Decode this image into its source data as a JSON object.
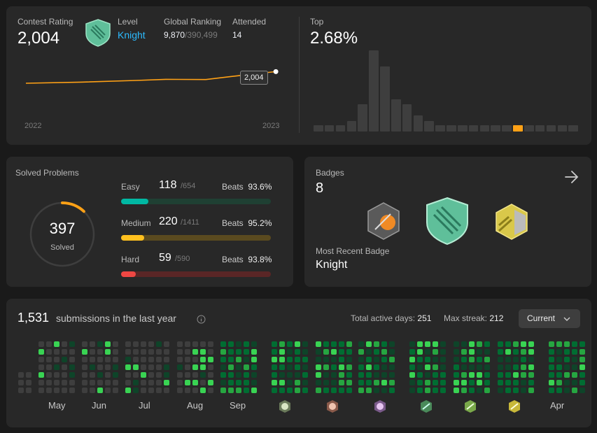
{
  "contest": {
    "rating_label": "Contest Rating",
    "rating_value": "2,004",
    "level_label": "Level",
    "level_value": "Knight",
    "ranking_label": "Global Ranking",
    "ranking_value": "9,870",
    "ranking_total": "/390,499",
    "attended_label": "Attended",
    "attended_value": "14",
    "tooltip_value": "2,004",
    "x_start": "2022",
    "x_end": "2023",
    "top_label": "Top",
    "top_value": "2.68%",
    "accent_color": "#ffa116"
  },
  "chart_data": [
    {
      "type": "line",
      "x": [
        0.0,
        0.22,
        0.44,
        0.56,
        0.72,
        0.82,
        0.92,
        1.0
      ],
      "y": [
        1900,
        1910,
        1925,
        1935,
        1933,
        1960,
        1985,
        2004
      ],
      "x_tick_labels": [
        "2022",
        "2023"
      ],
      "ylim": [
        1700,
        2050
      ]
    },
    {
      "type": "bar",
      "values": [
        1,
        1,
        1,
        2,
        5,
        15,
        12,
        6,
        5,
        3,
        2,
        1,
        1,
        1,
        1,
        1,
        1,
        1,
        1,
        1,
        1,
        1,
        1,
        1
      ],
      "highlight_index": 18,
      "highlight_color": "#ffa116",
      "bar_color": "#3e3e3e"
    }
  ],
  "solved": {
    "title": "Solved Problems",
    "total": "397",
    "total_label": "Solved",
    "ring_fraction": 0.12,
    "rows": [
      {
        "name": "Easy",
        "count": "118",
        "total": "/654",
        "beats_label": "Beats",
        "beats": "93.6%",
        "fraction": 0.18,
        "color": "#00b8a3",
        "track": "#1f4033"
      },
      {
        "name": "Medium",
        "count": "220",
        "total": "/1411",
        "beats_label": "Beats",
        "beats": "95.2%",
        "fraction": 0.156,
        "color": "#ffc01e",
        "track": "#5a4a1f"
      },
      {
        "name": "Hard",
        "count": "59",
        "total": "/590",
        "beats_label": "Beats",
        "beats": "93.8%",
        "fraction": 0.1,
        "color": "#ef4743",
        "track": "#5a2626"
      }
    ]
  },
  "badges": {
    "title": "Badges",
    "count": "8",
    "recent_label": "Most Recent Badge",
    "recent_value": "Knight",
    "arrow_icon": "arrow-right-icon"
  },
  "submissions": {
    "count": "1,531",
    "label": "submissions in the last year",
    "active_label": "Total active days:",
    "active_value": "251",
    "streak_label": "Max streak:",
    "streak_value": "212",
    "dropdown_value": "Current",
    "months": [
      "May",
      "Jun",
      "Jul",
      "Aug",
      "Sep",
      "Apr"
    ],
    "colors": {
      "empty": "#3e3e3e",
      "level1": "#0e4429",
      "level2": "#006d32",
      "level3": "#26a641",
      "level4": "#39d353"
    }
  }
}
